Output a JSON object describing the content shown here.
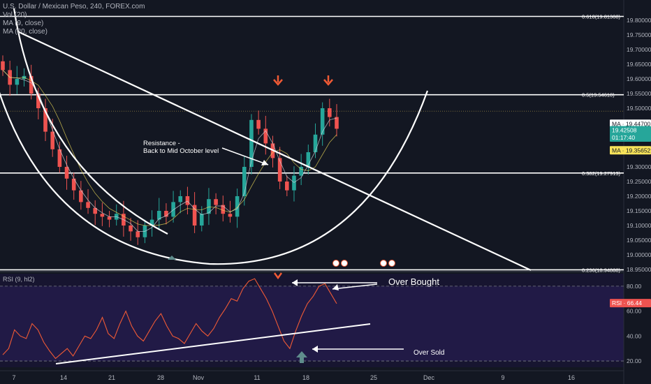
{
  "header": {
    "symbol_line": "U.S. Dollar / Mexican Peso, 240, FOREX.com",
    "indicators": [
      "Vol (20)",
      "MA (9, close)",
      "MA (20, close)"
    ]
  },
  "chart_data": [
    {
      "type": "candlestick",
      "title": "U.S. Dollar / Mexican Peso, 240, FOREX.com",
      "ylim": [
        18.95,
        19.85
      ],
      "y_ticks": [
        "19.80000",
        "19.75000",
        "19.70000",
        "19.65000",
        "19.60000",
        "19.55000",
        "19.50000",
        "19.45000",
        "19.40000",
        "19.35000",
        "19.30000",
        "19.25000",
        "19.20000",
        "19.15000",
        "19.10000",
        "19.05000",
        "19.00000",
        "18.95000"
      ],
      "x_ticks": [
        "7",
        "14",
        "21",
        "28",
        "Nov",
        "11",
        "18",
        "25",
        "Dec",
        "9",
        "16"
      ],
      "fib_levels": [
        {
          "label": "0.618(19.81308)",
          "value": 19.81308
        },
        {
          "label": "0.5(19.54610)",
          "value": 19.5461
        },
        {
          "label": "0.382(19.27913)",
          "value": 19.27913
        },
        {
          "label": "0.236(18.94888)",
          "value": 18.94888
        }
      ],
      "price_labels": [
        {
          "text": "MA · 19.44700",
          "value": 19.447,
          "color": "#ffffff",
          "text_color": "#131722"
        },
        {
          "text": "19.42508",
          "value": 19.42508,
          "color": "#26a69a",
          "text_color": "#ffffff"
        },
        {
          "text": "01:17:40",
          "value": 19.4,
          "color": "#26a69a",
          "text_color": "#ffffff"
        },
        {
          "text": "MA · 19.35652",
          "value": 19.35652,
          "color": "#f7e35a",
          "text_color": "#131722"
        }
      ],
      "annotations": {
        "resistance_line1": "Resistance -",
        "resistance_line2": "Back to Mid October level"
      },
      "close_series": [
        19.63,
        19.58,
        19.6,
        19.61,
        19.55,
        19.5,
        19.42,
        19.36,
        19.3,
        19.26,
        19.22,
        19.18,
        19.16,
        19.14,
        19.13,
        19.12,
        19.14,
        19.1,
        19.08,
        19.06,
        19.1,
        19.12,
        19.15,
        19.13,
        19.18,
        19.2,
        19.17,
        19.1,
        19.14,
        19.19,
        19.17,
        19.14,
        19.13,
        19.2,
        19.3,
        19.46,
        19.43,
        19.38,
        19.33,
        19.25,
        19.22,
        19.27,
        19.3,
        19.35,
        19.41,
        19.5,
        19.47,
        19.43
      ],
      "colors": {
        "up": "#26a69a",
        "down": "#ef5350",
        "ma9": "#d1d4dc",
        "ma20": "#f7e35a"
      }
    },
    {
      "type": "line",
      "title": "RSI (9, hl2)",
      "ylim": [
        15,
        90
      ],
      "y_ticks": [
        "80.00",
        "60.00",
        "40.00",
        "20.00"
      ],
      "last_value_label": "RSI · 66.44",
      "last_value": 66.44,
      "bands": {
        "upper": 80,
        "lower": 20
      },
      "values": [
        25,
        30,
        45,
        40,
        38,
        50,
        45,
        35,
        28,
        22,
        26,
        30,
        24,
        32,
        40,
        38,
        45,
        55,
        42,
        38,
        50,
        60,
        48,
        40,
        36,
        44,
        52,
        58,
        48,
        40,
        38,
        34,
        42,
        50,
        44,
        40,
        46,
        55,
        62,
        70,
        68,
        78,
        84,
        86,
        78,
        70,
        60,
        48,
        36,
        30,
        44,
        56,
        66,
        72,
        80,
        82,
        74,
        66
      ],
      "annotations": {
        "over_bought": "Over Bought",
        "over_sold": "Over Sold"
      },
      "color": "#f05a35"
    }
  ]
}
